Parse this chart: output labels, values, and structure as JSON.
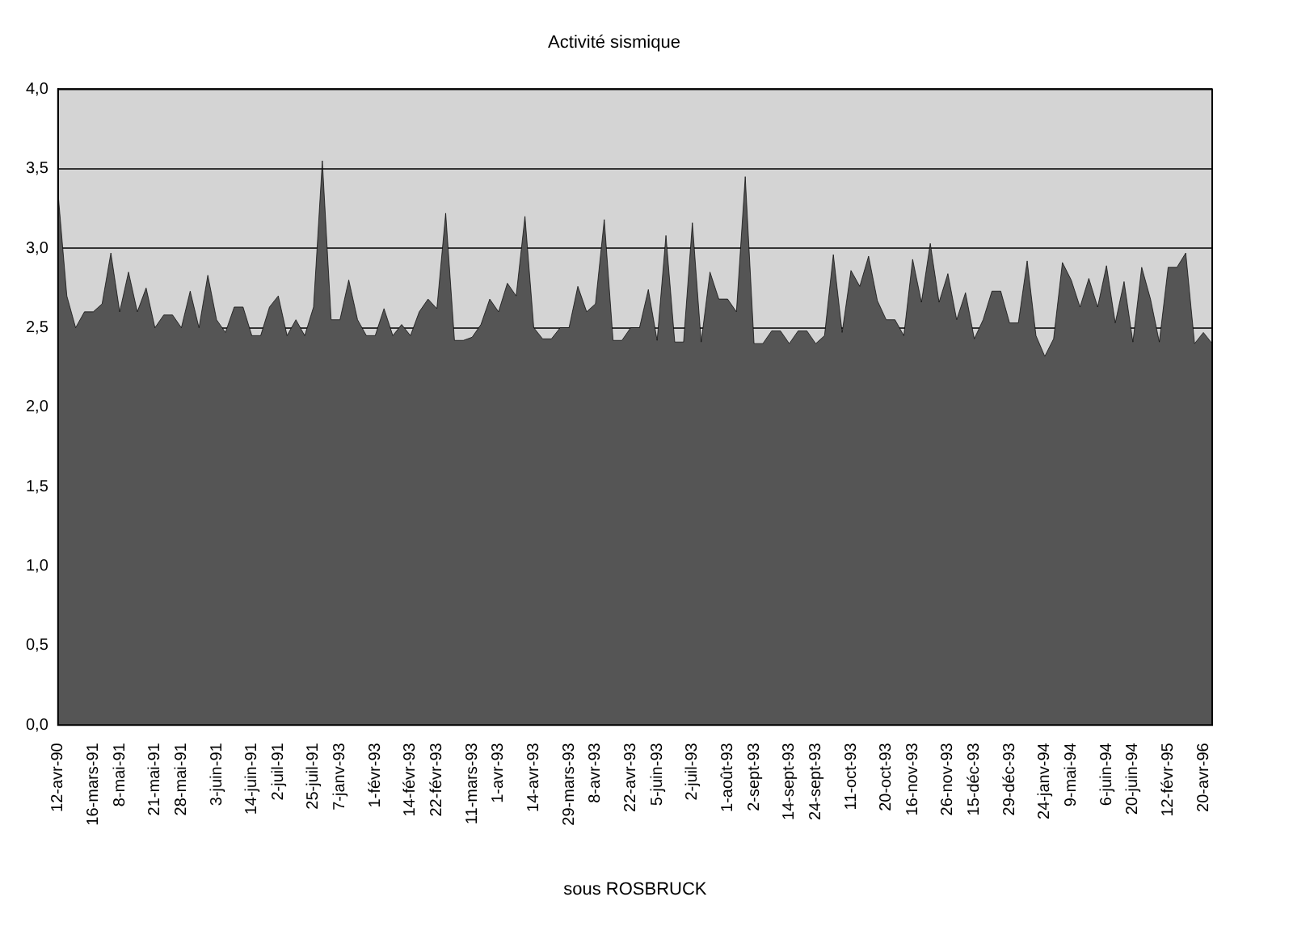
{
  "chart_data": {
    "type": "area",
    "title": "Activité sismique",
    "xlabel": "sous ROSBRUCK",
    "categories": [
      "12-avr-90",
      null,
      null,
      null,
      "16-mars-91",
      null,
      null,
      "8-mai-91",
      null,
      null,
      null,
      "21-mai-91",
      null,
      null,
      "28-mai-91",
      null,
      null,
      null,
      "3-juin-91",
      null,
      null,
      null,
      "14-juin-91",
      null,
      null,
      "2-juil-91",
      null,
      null,
      null,
      "25-juil-91",
      null,
      null,
      "7-janv-93",
      null,
      null,
      null,
      "1-févr-93",
      null,
      null,
      null,
      "14-févr-93",
      null,
      null,
      "22-févr-93",
      null,
      null,
      null,
      "11-mars-93",
      null,
      null,
      "1-avr-93",
      null,
      null,
      null,
      "14-avr-93",
      null,
      null,
      null,
      "29-mars-93",
      null,
      null,
      "8-avr-93",
      null,
      null,
      null,
      "22-avr-93",
      null,
      null,
      "5-juin-93",
      null,
      null,
      null,
      "2-juil-93",
      null,
      null,
      null,
      "1-août-93",
      null,
      null,
      "2-sept-93",
      null,
      null,
      null,
      "14-sept-93",
      null,
      null,
      "24-sept-93",
      null,
      null,
      null,
      "11-oct-93",
      null,
      null,
      null,
      "20-oct-93",
      null,
      null,
      "16-nov-93",
      null,
      null,
      null,
      "26-nov-93",
      null,
      null,
      "15-déc-93",
      null,
      null,
      null,
      "29-déc-93",
      null,
      null,
      null,
      "24-janv-94",
      null,
      null,
      "9-mai-94",
      null,
      null,
      null,
      "6-juin-94",
      null,
      null,
      "20-juin-94",
      null,
      null,
      null,
      "12-févr-95",
      null,
      null,
      null,
      "20-avr-96",
      null
    ],
    "series": [
      {
        "color": "#555555",
        "values": [
          3.35,
          2.7,
          2.5,
          2.6,
          2.6,
          2.65,
          2.97,
          2.6,
          2.85,
          2.6,
          2.75,
          2.5,
          2.58,
          2.58,
          2.5,
          2.73,
          2.5,
          2.83,
          2.55,
          2.47,
          2.63,
          2.63,
          2.45,
          2.45,
          2.63,
          2.7,
          2.45,
          2.55,
          2.45,
          2.63,
          3.55,
          2.55,
          2.55,
          2.8,
          2.55,
          2.45,
          2.45,
          2.62,
          2.45,
          2.52,
          2.45,
          2.6,
          2.68,
          2.62,
          3.22,
          2.42,
          2.42,
          2.44,
          2.52,
          2.68,
          2.6,
          2.78,
          2.7,
          3.2,
          2.5,
          2.43,
          2.43,
          2.5,
          2.5,
          2.76,
          2.6,
          2.65,
          3.18,
          2.42,
          2.42,
          2.5,
          2.5,
          2.74,
          2.42,
          3.08,
          2.41,
          2.41,
          3.16,
          2.41,
          2.85,
          2.68,
          2.68,
          2.6,
          3.45,
          2.4,
          2.4,
          2.48,
          2.48,
          2.4,
          2.48,
          2.48,
          2.4,
          2.45,
          2.96,
          2.47,
          2.86,
          2.76,
          2.95,
          2.67,
          2.55,
          2.55,
          2.45,
          2.93,
          2.66,
          3.03,
          2.66,
          2.84,
          2.55,
          2.72,
          2.43,
          2.55,
          2.73,
          2.73,
          2.53,
          2.53,
          2.92,
          2.45,
          2.32,
          2.43,
          2.91,
          2.8,
          2.63,
          2.81,
          2.63,
          2.89,
          2.53,
          2.79,
          2.41,
          2.88,
          2.68,
          2.41,
          2.88,
          2.88,
          2.97,
          2.4,
          2.47,
          2.4
        ]
      }
    ],
    "ylim": [
      0,
      4
    ],
    "yticks": [
      {
        "value": 0,
        "label": "0,0"
      },
      {
        "value": 0.5,
        "label": "0,5"
      },
      {
        "value": 1,
        "label": "1,0"
      },
      {
        "value": 1.5,
        "label": "1,5"
      },
      {
        "value": 2,
        "label": "2,0"
      },
      {
        "value": 2.5,
        "label": "2,5"
      },
      {
        "value": 3,
        "label": "3,0"
      },
      {
        "value": 3.5,
        "label": "3,5"
      },
      {
        "value": 4,
        "label": "4,0"
      }
    ],
    "grid": "y",
    "legend": false,
    "marker": "none"
  }
}
